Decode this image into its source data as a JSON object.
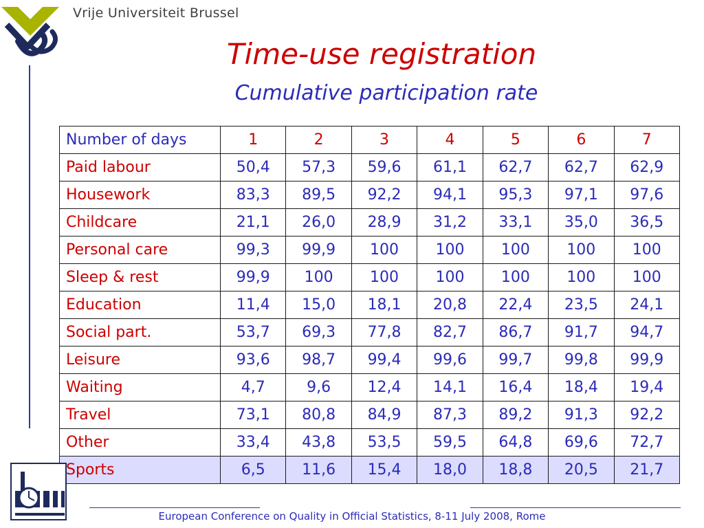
{
  "header": {
    "university": "Vrije Universiteit Brussel"
  },
  "slide": {
    "title": "Time-use registration",
    "subtitle": "Cumulative participation rate"
  },
  "table": {
    "header_label": "Number of days",
    "days": [
      "1",
      "2",
      "3",
      "4",
      "5",
      "6",
      "7"
    ],
    "rows": [
      {
        "label": "Paid labour",
        "values": [
          "50,4",
          "57,3",
          "59,6",
          "61,1",
          "62,7",
          "62,7",
          "62,9"
        ]
      },
      {
        "label": "Housework",
        "values": [
          "83,3",
          "89,5",
          "92,2",
          "94,1",
          "95,3",
          "97,1",
          "97,6"
        ]
      },
      {
        "label": "Childcare",
        "values": [
          "21,1",
          "26,0",
          "28,9",
          "31,2",
          "33,1",
          "35,0",
          "36,5"
        ]
      },
      {
        "label": "Personal care",
        "values": [
          "99,3",
          "99,9",
          "100",
          "100",
          "100",
          "100",
          "100"
        ]
      },
      {
        "label": "Sleep & rest",
        "values": [
          "99,9",
          "100",
          "100",
          "100",
          "100",
          "100",
          "100"
        ]
      },
      {
        "label": "Education",
        "values": [
          "11,4",
          "15,0",
          "18,1",
          "20,8",
          "22,4",
          "23,5",
          "24,1"
        ]
      },
      {
        "label": "Social part.",
        "values": [
          "53,7",
          "69,3",
          "77,8",
          "82,7",
          "86,7",
          "91,7",
          "94,7"
        ]
      },
      {
        "label": "Leisure",
        "values": [
          "93,6",
          "98,7",
          "99,4",
          "99,6",
          "99,7",
          "99,8",
          "99,9"
        ]
      },
      {
        "label": "Waiting",
        "values": [
          "4,7",
          "9,6",
          "12,4",
          "14,1",
          "16,4",
          "18,4",
          "19,4"
        ]
      },
      {
        "label": "Travel",
        "values": [
          "73,1",
          "80,8",
          "84,9",
          "87,3",
          "89,2",
          "91,3",
          "92,2"
        ]
      },
      {
        "label": "Other",
        "values": [
          "33,4",
          "43,8",
          "53,5",
          "59,5",
          "64,8",
          "69,6",
          "72,7"
        ]
      },
      {
        "label": "Sports",
        "values": [
          "6,5",
          "11,6",
          "15,4",
          "18,0",
          "18,8",
          "20,5",
          "21,7"
        ],
        "highlight": true
      }
    ]
  },
  "footer": {
    "text": "European Conference on Quality in Official Statistics, 8-11 July 2008, Rome"
  },
  "logos": {
    "top_left": "vub-logo-icon",
    "bottom_left": "tor-logo-icon"
  },
  "colors": {
    "title_red": "#cc0000",
    "text_blue": "#2b2bb8",
    "highlight_row": "#dcdcff",
    "logo_green": "#a8b400",
    "logo_navy": "#1f2a5c"
  }
}
